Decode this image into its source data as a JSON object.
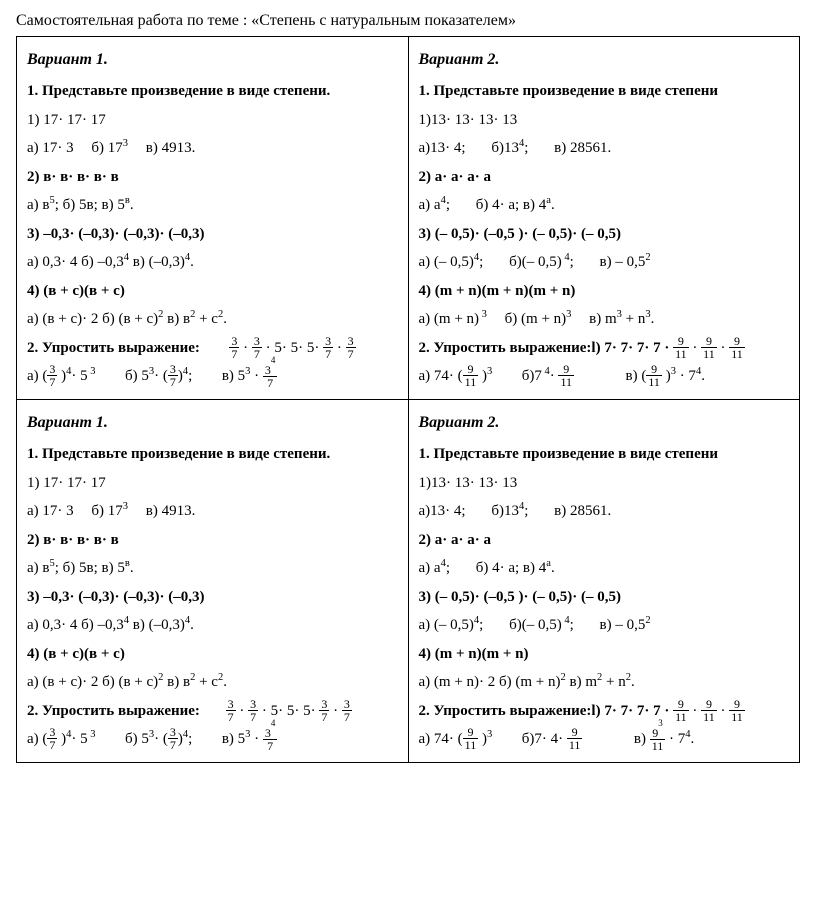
{
  "title": "Самостоятельная работа по теме : «Степень с натуральным показателем»",
  "v1": {
    "head": "Вариант 1.",
    "t1": "1. Представьте произведение в виде степени.",
    "l1": "1) 17· 17· 17",
    "l1a": "а) 17· 3",
    "l1b": "б) 17",
    "l1b_sup": "3",
    "l1c": "в) 4913.",
    "l2": "2) в· в· в· в· в",
    "l2a": "а) в",
    "l2a_sup": "5",
    "l2b": ";   б) 5в;   в) 5",
    "l2b_sup": "в",
    "l2c": ".",
    "l3": "3) –0,3· (–0,3)· (–0,3)· (–0,3)",
    "l3a": "а) 0,3· 4   б) –0,3",
    "l3a_sup": "4",
    "l3b": "   в) (–0,3)",
    "l3b_sup": "4",
    "l3c": ".",
    "l4": "4) (в + с)(в + с)",
    "l4a": "а) (в + с)· 2    б) (в + с)",
    "l4a_sup": "2",
    "l4b": "   в) в",
    "l4b_sup": "2",
    "l4c": " + с",
    "l4c_sup": "2",
    "l4d": ".",
    "t2": "2. Упростить выражение:",
    "ans_a": "а)  (",
    "ans_a2": " )",
    "ans_a2_sup": "4",
    "ans_a3": "·  5",
    "ans_a3_sup": " 3",
    "ans_b": "б) 5",
    "ans_b_sup": "3",
    "ans_b2": "·  (",
    "ans_b3": ")",
    "ans_b3_sup": "4",
    "ans_b4": ";",
    "ans_c": "в) 5",
    "ans_c_sup": "3",
    "ans_c2": " · "
  },
  "v2": {
    "head": "Вариант 2.",
    "t1": "1. Представьте произведение в виде степени",
    "l1": "1)13· 13· 13· 13",
    "l1a": "а)13· 4;",
    "l1b": "б)13",
    "l1b_sup": "4",
    "l1b2": ";",
    "l1c": "в) 28561.",
    "l2": "2) а· а· а· а",
    "l2a": "а)  а",
    "l2a_sup": "4",
    "l2b": ";",
    "l2c": "б) 4· а;   в)  4",
    "l2c_sup": "а",
    "l2d": ".",
    "l3": "3) (– 0,5)· (–0,5 )· (– 0,5)· (– 0,5)",
    "l3a": "а) (– 0,5)",
    "l3a_sup": "4",
    "l3a2": ";",
    "l3b": "б)(– 0,5)",
    "l3b_sup": " 4",
    "l3b2": ";",
    "l3c": "в) – 0,5",
    "l3c_sup": "2",
    "l4": "4) (m + n)(m + n)(m + n)",
    "l4a": "а) (m + n)",
    "l4a_sup": " 3",
    "l4b": "б) (m + n)",
    "l4b_sup": "3",
    "l4c": "в) m",
    "l4c_sup": "3",
    "l4d": " + n",
    "l4d_sup": "3",
    "l4e": ".",
    "t2": "2. Упростить выражение:l)  7· 7· 7·  7   · ",
    "ans_a": "а)  74· (",
    "ans_a2": " )",
    "ans_a2_sup": "3",
    "ans_b": "б)7",
    "ans_b_sup": " 4",
    "ans_b2": "·  ",
    "ans_c": "в) (",
    "ans_c2": " )",
    "ans_c2_sup": "3",
    "ans_c3": " · 7",
    "ans_c3_sup": "4",
    "ans_c4": "."
  },
  "v2b": {
    "l4": "4) (m + n)(m + n)",
    "l4a": "а) (m + n)· 2   б) (m + n)",
    "l4a_sup": "2",
    "l4b": "   в) m",
    "l4b_sup": "2",
    "l4c": " + n",
    "l4c_sup": "2",
    "l4d": ".",
    "ans_b": "б)7· 4· ",
    "ans_c": "в) ",
    "ans_c2": " · 7",
    "ans_c2_sup": "4",
    "ans_c3": "."
  },
  "frac": {
    "n3": "3",
    "d7": "7",
    "n9": "9",
    "d11": "11",
    "n3sup4": "3",
    "sup4": "4",
    "n9sup3": "9",
    "sup3": "3"
  }
}
